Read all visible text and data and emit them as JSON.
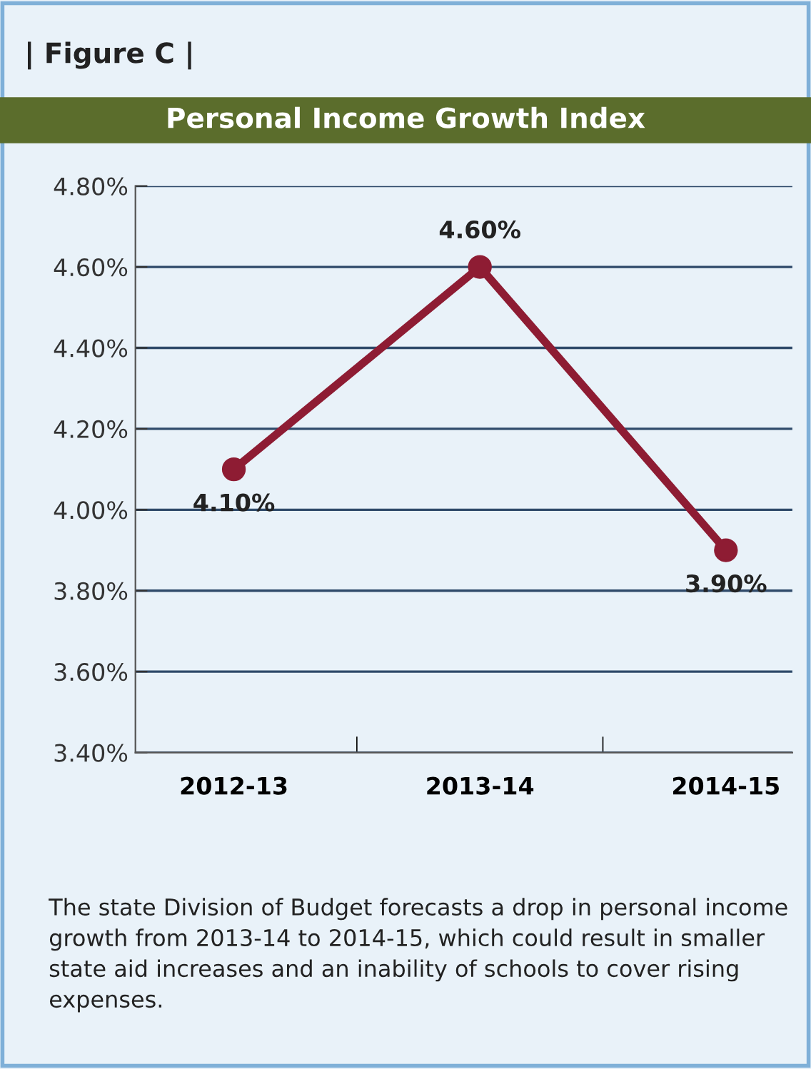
{
  "chart_data": {
    "type": "line",
    "title": "Personal Income Growth Index",
    "annotations": [
      "| Figure C |",
      "The state Division of Budget forecasts a drop in personal income growth from 2013-14 to 2014-15, which could result in smaller state aid increases and an inability of schools to cover rising expenses."
    ],
    "categories": [
      "2012-13",
      "2013-14",
      "2014-15"
    ],
    "series": [
      {
        "color": "#8e1c33",
        "values": [
          4.1,
          4.6,
          3.9
        ],
        "value_labels": [
          "4.10%",
          "4.60%",
          "3.90%"
        ]
      }
    ],
    "ylim": [
      3.4,
      4.8
    ],
    "yticks": [
      {
        "value": 3.4,
        "label": "3.40%"
      },
      {
        "value": 3.6,
        "label": "3.60%"
      },
      {
        "value": 3.8,
        "label": "3.80%"
      },
      {
        "value": 4.0,
        "label": "4.00%"
      },
      {
        "value": 4.2,
        "label": "4.20%"
      },
      {
        "value": 4.4,
        "label": "4.40%"
      },
      {
        "value": 4.6,
        "label": "4.60%"
      },
      {
        "value": 4.8,
        "label": "4.80%"
      }
    ],
    "grid": "y",
    "marker": "circle",
    "line_style": "solid"
  }
}
